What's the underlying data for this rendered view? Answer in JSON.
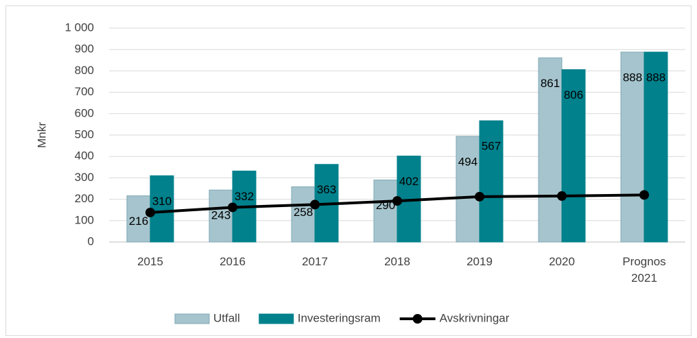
{
  "chart_data": {
    "type": "bar",
    "y_label": "Mnkr",
    "categories": [
      "2015",
      "2016",
      "2017",
      "2018",
      "2019",
      "2020",
      "Prognos 2021"
    ],
    "series": [
      {
        "name": "Utfall",
        "type": "bar",
        "color": "#a6c4cd",
        "values": [
          216,
          243,
          258,
          290,
          494,
          861,
          888
        ]
      },
      {
        "name": "Investeringsram",
        "type": "bar",
        "color": "#00818c",
        "values": [
          310,
          332,
          363,
          402,
          567,
          806,
          888
        ]
      },
      {
        "name": "Avskrivningar",
        "type": "line",
        "color": "#000000",
        "values": [
          138,
          162,
          175,
          192,
          212,
          215,
          220
        ]
      }
    ],
    "ylim": [
      0,
      1000
    ],
    "yticks": [
      0,
      100,
      200,
      300,
      400,
      500,
      600,
      700,
      800,
      900,
      {
        "value": 1000,
        "label": "1 000"
      }
    ],
    "grid": true,
    "legend": "bottom"
  }
}
